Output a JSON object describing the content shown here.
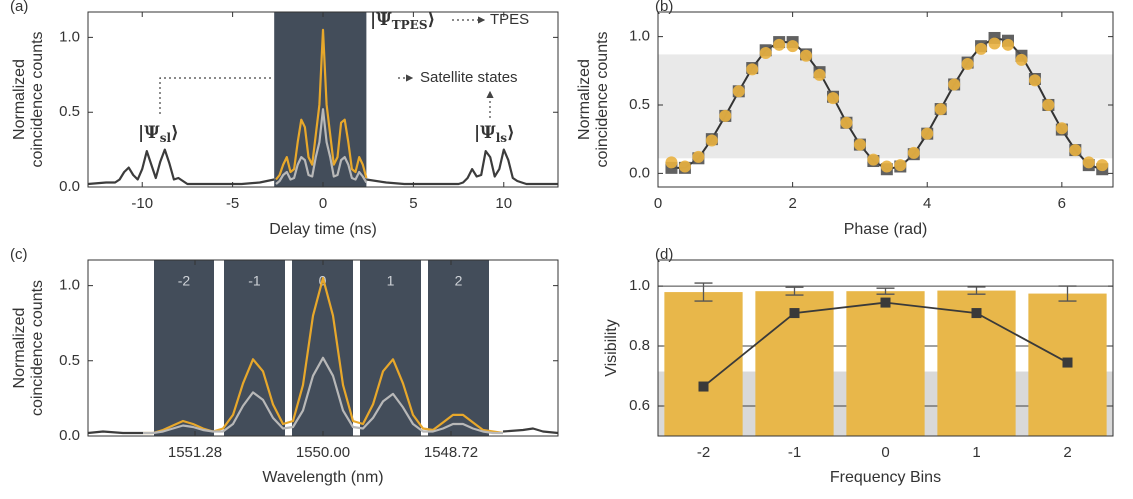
{
  "chart_data": [
    {
      "type": "line",
      "panel_label": "(a)",
      "xlabel": "Delay time (ns)",
      "ylabel": [
        "Normalized",
        "coincidence counts"
      ],
      "xlim": [
        -13,
        13
      ],
      "ylim": [
        0,
        1.17
      ],
      "xticks": [
        -10,
        -5,
        0,
        5,
        10
      ],
      "yticks": [
        {
          "value": 0,
          "label": "0.0"
        },
        0.5,
        {
          "value": 1,
          "label": "1.0"
        }
      ],
      "shades": [
        {
          "range": [
            -2.7,
            2.4
          ],
          "color": "#434d5a"
        }
      ],
      "series": [
        {
          "color": "#3c3c3c",
          "x": [
            -13,
            -12,
            -11.5,
            -11.25,
            -11,
            -10.75,
            -10.5,
            -10.25,
            -10,
            -9.75,
            -9.5,
            -9.25,
            -9,
            -8.75,
            -8.5,
            -8.25,
            -8,
            -7.75,
            -7.5,
            -6.5,
            -5.5,
            -4.5,
            -3.5,
            -2.7
          ],
          "values": [
            0.02,
            0.03,
            0.03,
            0.05,
            0.1,
            0.13,
            0.08,
            0.05,
            0.12,
            0.24,
            0.15,
            0.06,
            0.17,
            0.25,
            0.16,
            0.05,
            0.06,
            0.04,
            0.02,
            0.02,
            0.02,
            0.02,
            0.03,
            0.05
          ]
        },
        {
          "color": "#3c3c3c",
          "x": [
            2.4,
            3.5,
            4.5,
            5.5,
            6.5,
            7.5,
            7.75,
            8,
            8.25,
            8.5,
            8.75,
            9,
            9.25,
            9.5,
            9.75,
            10,
            10.25,
            10.5,
            10.75,
            11,
            11.25,
            11.5,
            12,
            13
          ],
          "values": [
            0.05,
            0.03,
            0.02,
            0.02,
            0.02,
            0.02,
            0.03,
            0.06,
            0.12,
            0.07,
            0.08,
            0.24,
            0.2,
            0.07,
            0.12,
            0.25,
            0.18,
            0.06,
            0.04,
            0.03,
            0.02,
            0.02,
            0.02,
            0.02
          ]
        },
        {
          "color": "#e8a82b",
          "x": [
            -2.6,
            -2.4,
            -2.2,
            -2,
            -1.8,
            -1.6,
            -1.4,
            -1.2,
            -1,
            -0.8,
            -0.6,
            -0.4,
            -0.2,
            0,
            0.2,
            0.4,
            0.6,
            0.8,
            1,
            1.2,
            1.4,
            1.6,
            1.8,
            2,
            2.2,
            2.4
          ],
          "values": [
            0.05,
            0.08,
            0.15,
            0.2,
            0.1,
            0.12,
            0.3,
            0.45,
            0.4,
            0.2,
            0.15,
            0.35,
            0.55,
            1.05,
            0.55,
            0.35,
            0.15,
            0.2,
            0.43,
            0.45,
            0.3,
            0.12,
            0.1,
            0.2,
            0.15,
            0.06
          ]
        },
        {
          "color": "#b8b8b8",
          "x": [
            -2.6,
            -2.4,
            -2.2,
            -2,
            -1.8,
            -1.6,
            -1.4,
            -1.2,
            -1,
            -0.8,
            -0.6,
            -0.4,
            -0.2,
            0,
            0.2,
            0.4,
            0.6,
            0.8,
            1,
            1.2,
            1.4,
            1.6,
            1.8,
            2,
            2.2,
            2.4
          ],
          "values": [
            0.02,
            0.04,
            0.08,
            0.1,
            0.05,
            0.06,
            0.15,
            0.2,
            0.18,
            0.08,
            0.07,
            0.2,
            0.3,
            0.52,
            0.3,
            0.2,
            0.07,
            0.08,
            0.18,
            0.2,
            0.15,
            0.06,
            0.05,
            0.1,
            0.07,
            0.03
          ]
        }
      ],
      "annotations": [
        {
          "text": "|Ψ",
          "sub": "sl",
          "end": "⟩"
        },
        {
          "text": "|Ψ",
          "sub": "ls",
          "end": "⟩"
        },
        {
          "text": "|Ψ",
          "sub": "TPES",
          "end": "⟩"
        },
        {
          "text": "TPES"
        },
        {
          "text": "Satellite states"
        }
      ]
    },
    {
      "type": "scatter",
      "panel_label": "(b)",
      "xlabel": "Phase (rad)",
      "ylabel": [
        "Normalized",
        "coincidence counts"
      ],
      "xlim": [
        0,
        6.76
      ],
      "ylim": [
        -0.1,
        1.18
      ],
      "xticks": [
        0,
        2,
        4,
        6
      ],
      "yticks": [
        {
          "value": 0,
          "label": "0.0"
        },
        0.5,
        {
          "value": 1,
          "label": "1.0"
        }
      ],
      "hbands": [
        {
          "range": [
            0.11,
            0.87
          ],
          "color": "#e9e9e9"
        }
      ],
      "x": [
        0.2,
        0.4,
        0.6,
        0.8,
        1,
        1.2,
        1.4,
        1.6,
        1.8,
        2,
        2.2,
        2.4,
        2.6,
        2.8,
        3,
        3.2,
        3.4,
        3.6,
        3.8,
        4,
        4.2,
        4.4,
        4.6,
        4.8,
        5,
        5.2,
        5.4,
        5.6,
        5.8,
        6,
        6.2,
        6.4,
        6.6
      ],
      "series": [
        {
          "color": "#505050",
          "marker": "square",
          "line": true,
          "values": [
            0.04,
            0.04,
            0.11,
            0.25,
            0.42,
            0.6,
            0.77,
            0.9,
            0.96,
            0.96,
            0.87,
            0.74,
            0.56,
            0.37,
            0.21,
            0.09,
            0.03,
            0.05,
            0.14,
            0.29,
            0.47,
            0.65,
            0.81,
            0.93,
            0.99,
            0.97,
            0.86,
            0.69,
            0.5,
            0.32,
            0.17,
            0.06,
            0.03
          ]
        },
        {
          "color": "#e9b140",
          "marker": "circle",
          "values": [
            0.08,
            0.05,
            0.12,
            0.24,
            0.42,
            0.6,
            0.76,
            0.88,
            0.94,
            0.93,
            0.86,
            0.72,
            0.55,
            0.37,
            0.21,
            0.1,
            0.05,
            0.06,
            0.15,
            0.29,
            0.47,
            0.65,
            0.8,
            0.91,
            0.95,
            0.94,
            0.83,
            0.68,
            0.5,
            0.33,
            0.17,
            0.08,
            0.06
          ]
        }
      ]
    },
    {
      "type": "line",
      "panel_label": "(c)",
      "xlabel": "Wavelength (nm)",
      "ylabel": [
        "Normalized",
        "coincidence counts"
      ],
      "xlim": [
        1552.35,
        1547.65
      ],
      "ylim": [
        0,
        1.17
      ],
      "xticks": [
        1551.28,
        {
          "value": 1550,
          "label": "1550.00"
        },
        1548.72
      ],
      "yticks": [
        {
          "value": 0,
          "label": "0.0"
        },
        0.5,
        {
          "value": 1,
          "label": "1.0"
        }
      ],
      "shades": [
        {
          "label": "-2",
          "range": [
            1551.69,
            1551.09
          ],
          "color": "#434d5a"
        },
        {
          "label": "-1",
          "range": [
            1550.99,
            1550.38
          ],
          "color": "#434d5a"
        },
        {
          "label": "0",
          "range": [
            1550.31,
            1549.7
          ],
          "color": "#434d5a"
        },
        {
          "label": "1",
          "range": [
            1549.63,
            1549.02
          ],
          "color": "#434d5a"
        },
        {
          "label": "2",
          "range": [
            1548.95,
            1548.34
          ],
          "color": "#434d5a"
        }
      ],
      "series": [
        {
          "color": "#3c3c3c",
          "x": [
            1552.35,
            1552.2,
            1552,
            1551.8
          ],
          "values": [
            0.02,
            0.03,
            0.02,
            0.02
          ]
        },
        {
          "color": "#3c3c3c",
          "x": [
            1548.2,
            1548,
            1547.9,
            1547.8,
            1547.65
          ],
          "values": [
            0.03,
            0.04,
            0.05,
            0.03,
            0.02
          ]
        },
        {
          "color": "#e8a82b",
          "x": [
            1551.8,
            1551.7,
            1551.6,
            1551.5,
            1551.4,
            1551.3,
            1551.2,
            1551.1,
            1551,
            1550.9,
            1550.8,
            1550.7,
            1550.6,
            1550.5,
            1550.4,
            1550.3,
            1550.2,
            1550.1,
            1550,
            1549.9,
            1549.8,
            1549.7,
            1549.6,
            1549.5,
            1549.4,
            1549.3,
            1549.2,
            1549.1,
            1549,
            1548.9,
            1548.8,
            1548.7,
            1548.6,
            1548.5,
            1548.4,
            1548.3,
            1548.2
          ],
          "values": [
            0.02,
            0.02,
            0.04,
            0.07,
            0.1,
            0.08,
            0.05,
            0.03,
            0.05,
            0.14,
            0.35,
            0.51,
            0.43,
            0.21,
            0.08,
            0.1,
            0.34,
            0.8,
            1.05,
            0.8,
            0.34,
            0.1,
            0.08,
            0.21,
            0.43,
            0.51,
            0.35,
            0.14,
            0.05,
            0.04,
            0.09,
            0.14,
            0.14,
            0.09,
            0.04,
            0.03,
            0.02
          ]
        },
        {
          "color": "#b8b8b8",
          "x": [
            1551.8,
            1551.7,
            1551.6,
            1551.5,
            1551.4,
            1551.3,
            1551.2,
            1551.1,
            1551,
            1550.9,
            1550.8,
            1550.7,
            1550.6,
            1550.5,
            1550.4,
            1550.3,
            1550.2,
            1550.1,
            1550,
            1549.9,
            1549.8,
            1549.7,
            1549.6,
            1549.5,
            1549.4,
            1549.3,
            1549.2,
            1549.1,
            1549,
            1548.9,
            1548.8,
            1548.7,
            1548.6,
            1548.5,
            1548.4,
            1548.3,
            1548.2
          ],
          "values": [
            0.02,
            0.02,
            0.03,
            0.05,
            0.07,
            0.06,
            0.04,
            0.03,
            0.03,
            0.08,
            0.2,
            0.29,
            0.24,
            0.12,
            0.05,
            0.06,
            0.17,
            0.4,
            0.52,
            0.4,
            0.17,
            0.06,
            0.05,
            0.12,
            0.23,
            0.28,
            0.19,
            0.08,
            0.03,
            0.03,
            0.05,
            0.08,
            0.08,
            0.05,
            0.03,
            0.02,
            0.02
          ]
        }
      ]
    },
    {
      "type": "bar",
      "panel_label": "(d)",
      "xlabel": "Frequency Bins",
      "ylabel": [
        "Visibility"
      ],
      "categories": [
        "-2",
        "-1",
        "0",
        "1",
        "2"
      ],
      "ylim": [
        0.5,
        1.087
      ],
      "yticks": [
        0.6,
        0.8,
        {
          "value": 1,
          "label": "1.0"
        }
      ],
      "grid": true,
      "hbands": [
        {
          "range": [
            0.5,
            0.715
          ],
          "color": "#d9d9d9"
        }
      ],
      "color": "#e8b74a",
      "values": [
        0.98,
        0.983,
        0.983,
        0.985,
        0.975
      ],
      "errors": [
        0.03,
        0.013,
        0.01,
        0.012,
        0.025
      ],
      "points": {
        "color": "#3a3a3a",
        "values": [
          0.665,
          0.91,
          0.945,
          0.91,
          0.745
        ],
        "errors": [
          0.012,
          0.008,
          0.01,
          0.008,
          0.01
        ]
      }
    }
  ]
}
